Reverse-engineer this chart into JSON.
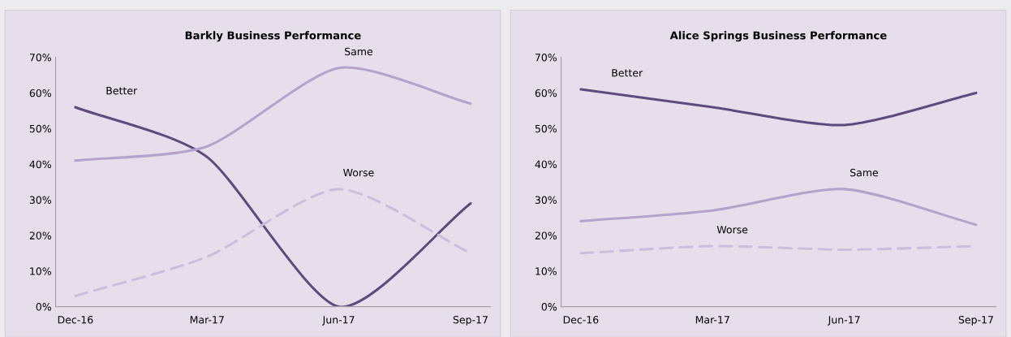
{
  "chart_data": [
    {
      "type": "line",
      "title": "Barkly Business Performance",
      "categories": [
        "Dec-16",
        "Mar-17",
        "Jun-17",
        "Sep-17"
      ],
      "ylim": [
        0,
        0.7
      ],
      "yticks": [
        {
          "value": 0,
          "label": "0%"
        },
        {
          "value": 0.1,
          "label": "10%"
        },
        {
          "value": 0.2,
          "label": "20%"
        },
        {
          "value": 0.3,
          "label": "30%"
        },
        {
          "value": 0.4,
          "label": "40%"
        },
        {
          "value": 0.5,
          "label": "50%"
        },
        {
          "value": 0.6,
          "label": "60%"
        },
        {
          "value": 0.7,
          "label": "70%"
        }
      ],
      "grid": false,
      "legend": false,
      "series": [
        {
          "name": "Better",
          "color": "#5e4a7e",
          "line_style": "solid",
          "values": [
            0.56,
            0.42,
            0.0,
            0.29
          ]
        },
        {
          "name": "Same",
          "color": "#b3a2cc",
          "line_style": "solid",
          "values": [
            0.41,
            0.45,
            0.67,
            0.57
          ]
        },
        {
          "name": "Worse",
          "color": "#cbbedd",
          "line_style": "dashed",
          "values": [
            0.03,
            0.14,
            0.33,
            0.15
          ]
        }
      ]
    },
    {
      "type": "line",
      "title": "Alice Springs Business Performance",
      "categories": [
        "Dec-16",
        "Mar-17",
        "Jun-17",
        "Sep-17"
      ],
      "ylim": [
        0,
        0.7
      ],
      "yticks": [
        {
          "value": 0,
          "label": "0%"
        },
        {
          "value": 0.1,
          "label": "10%"
        },
        {
          "value": 0.2,
          "label": "20%"
        },
        {
          "value": 0.3,
          "label": "30%"
        },
        {
          "value": 0.4,
          "label": "40%"
        },
        {
          "value": 0.5,
          "label": "50%"
        },
        {
          "value": 0.6,
          "label": "60%"
        },
        {
          "value": 0.7,
          "label": "70%"
        }
      ],
      "grid": false,
      "legend": false,
      "series": [
        {
          "name": "Better",
          "color": "#5e4a7e",
          "line_style": "solid",
          "values": [
            0.61,
            0.56,
            0.51,
            0.6
          ]
        },
        {
          "name": "Same",
          "color": "#b3a2cc",
          "line_style": "solid",
          "values": [
            0.24,
            0.27,
            0.33,
            0.23
          ]
        },
        {
          "name": "Worse",
          "color": "#cbbedd",
          "line_style": "dashed",
          "values": [
            0.15,
            0.17,
            0.16,
            0.17
          ]
        }
      ]
    }
  ]
}
